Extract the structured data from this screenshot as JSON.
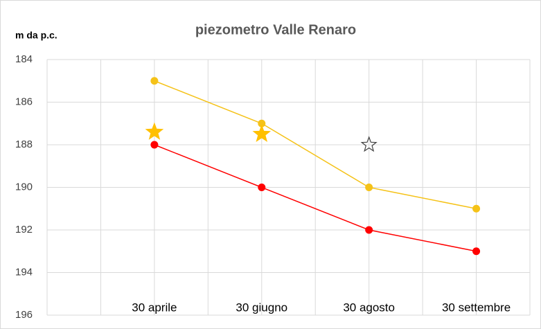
{
  "chart_data": {
    "type": "line",
    "title": "piezometro Valle Renaro",
    "y_label": "m da p.c.",
    "categories": [
      "30 aprile",
      "30 giugno",
      "30 agosto",
      "30 settembre"
    ],
    "series": [
      {
        "color": "#f5c218",
        "marker": "circle",
        "values": [
          185,
          187,
          190,
          191
        ]
      },
      {
        "color": "#ff0000",
        "marker": "circle",
        "values": [
          188,
          190,
          192,
          193
        ]
      },
      {
        "color": "#ffc000",
        "marker": "star",
        "values": [
          187.4,
          187.5,
          null,
          null
        ]
      },
      {
        "color": "#404040",
        "marker": "hollow-star",
        "values": [
          null,
          null,
          188,
          null
        ]
      }
    ],
    "ylim": [
      196,
      184
    ],
    "yticks": [
      184,
      186,
      188,
      190,
      192,
      194,
      196
    ],
    "grid": true
  }
}
